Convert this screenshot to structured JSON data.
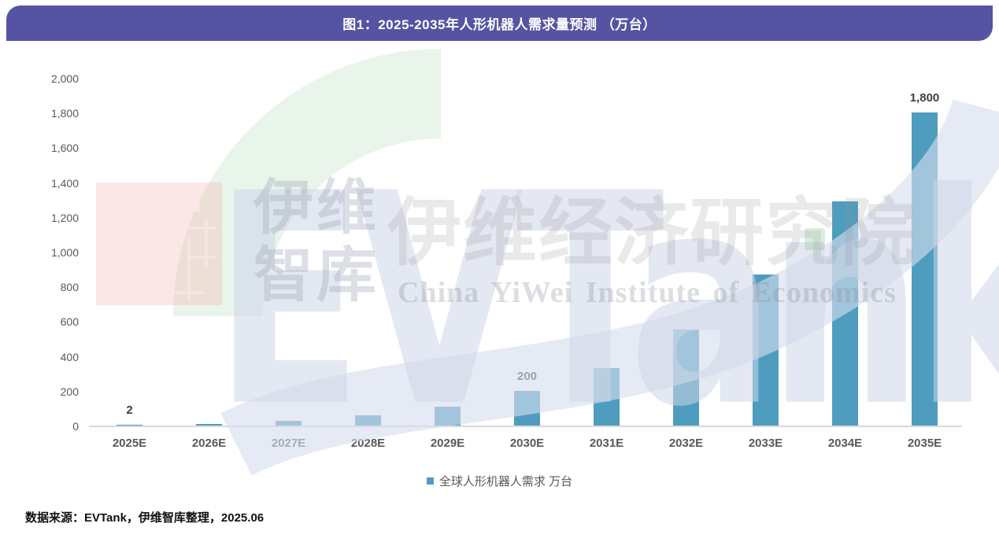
{
  "banner": {
    "title": "图1：2025-2035年人形机器人需求量预测 （万台）",
    "bg_color": "#5653A3",
    "text_color": "#FFFFFF"
  },
  "chart_data": {
    "type": "bar",
    "title": "图1：2025-2035年人形机器人需求量预测 （万台）",
    "categories": [
      "2025E",
      "2026E",
      "2027E",
      "2028E",
      "2029E",
      "2030E",
      "2031E",
      "2032E",
      "2033E",
      "2034E",
      "2035E"
    ],
    "series": [
      {
        "name": "全球人形机器人需求 万台",
        "values": [
          2,
          10,
          28,
          58,
          110,
          200,
          330,
          550,
          870,
          1290,
          1800
        ],
        "color": "#4F9DBE"
      }
    ],
    "data_labels": [
      "2",
      "",
      "",
      "",
      "",
      "200",
      "",
      "",
      "",
      "",
      "1,800"
    ],
    "xlabel": "",
    "ylabel": "",
    "ylim": [
      0,
      2000
    ],
    "ytick_step": 200,
    "yticks": [
      "0",
      "200",
      "400",
      "600",
      "800",
      "1,000",
      "1,200",
      "1,400",
      "1,600",
      "1,800",
      "2,000"
    ],
    "grid": false,
    "legend_position": "bottom"
  },
  "legend": {
    "swatch_color": "#4F9DBE",
    "label": "全球人形机器人需求 万台"
  },
  "source_note": "数据来源：EVTank，伊维智库整理，2025.06",
  "watermark": {
    "brand_word": "EVTank",
    "stack_line1": "伊维",
    "stack_line2": "智库",
    "cn_name_large": "伊维经济研究院",
    "en_name": "China YiWei Institute of Economics",
    "accent_green": "#E3F1E3",
    "accent_blue": "#E9EDF4",
    "accent_pink": "#FAE3E1"
  }
}
